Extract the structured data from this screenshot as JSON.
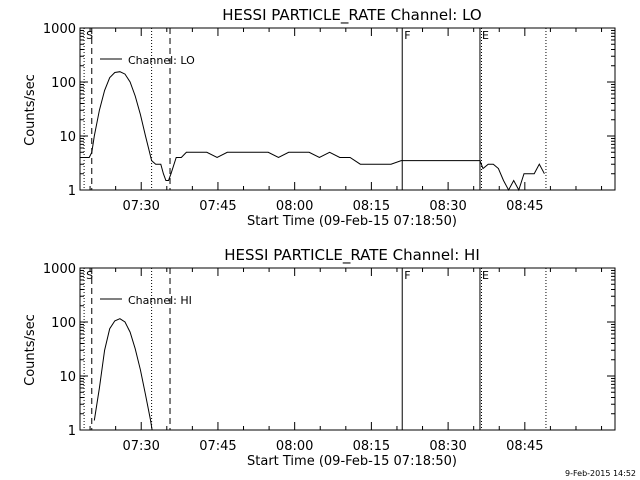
{
  "footer": {
    "timestamp": "9-Feb-2015 14:52"
  },
  "chart_data": [
    {
      "type": "line",
      "title": "HESSI PARTICLE_RATE Channel: LO",
      "xlabel": "Start Time (09-Feb-15 07:18:50)",
      "ylabel": "Counts/sec",
      "yscale": "log",
      "ylim": [
        1,
        1000
      ],
      "xlim_minutes_after_start": [
        -0.8,
        103.8
      ],
      "y_tick_labels": [
        "1",
        "10",
        "100",
        "1000"
      ],
      "x_tick_labels": [
        "07:30",
        "07:45",
        "08:00",
        "08:15",
        "08:30",
        "08:45"
      ],
      "x_tick_minutes_after_start": [
        11.17,
        26.17,
        41.17,
        56.17,
        71.17,
        86.17
      ],
      "legend": {
        "label": "Channel: LO",
        "position": "top-left"
      },
      "markers": [
        {
          "label": "S",
          "t": 0,
          "style": "dotted"
        },
        {
          "label": "",
          "t": 1.5,
          "style": "dashed"
        },
        {
          "label": "",
          "t": 13.2,
          "style": "dotted"
        },
        {
          "label": "",
          "t": 16.8,
          "style": "dashed"
        },
        {
          "label": "F",
          "t": 62.2,
          "style": "solid"
        },
        {
          "label": "E",
          "t": 77.4,
          "style": "solid"
        },
        {
          "label": "",
          "t": 77.7,
          "style": "dotted"
        },
        {
          "label": "",
          "t": 90.3,
          "style": "dotted"
        }
      ],
      "series": [
        {
          "name": "LO",
          "x": [
            0,
            0.5,
            1,
            1.5,
            2,
            3,
            4,
            5,
            6,
            7,
            8,
            9,
            10,
            11,
            12,
            12.6,
            13.2,
            14,
            15,
            15.5,
            16,
            16.5,
            17,
            18,
            19,
            20,
            22,
            24,
            26,
            28,
            30,
            32,
            34,
            36,
            38,
            40,
            42,
            44,
            46,
            48,
            50,
            52,
            54,
            56,
            58,
            60,
            62,
            64,
            66,
            68,
            70,
            72,
            74,
            76,
            77.4,
            78,
            79,
            80,
            81,
            82,
            83,
            84,
            85,
            86,
            87,
            88,
            89,
            90
          ],
          "values": [
            4,
            4,
            4,
            5,
            10,
            30,
            70,
            120,
            150,
            155,
            140,
            100,
            55,
            25,
            10,
            6,
            3.5,
            3,
            3,
            2,
            1.5,
            1.5,
            2,
            4,
            4,
            5,
            5,
            5,
            4,
            5,
            5,
            5,
            5,
            5,
            4,
            5,
            5,
            5,
            4,
            5,
            4,
            4,
            3,
            3,
            3,
            3,
            3.5,
            3.5,
            3.5,
            3.5,
            3.5,
            3.5,
            3.5,
            3.5,
            3.5,
            2.5,
            3,
            3,
            2.5,
            1.5,
            1,
            1.5,
            1,
            2,
            2,
            2,
            3,
            2
          ]
        }
      ]
    },
    {
      "type": "line",
      "title": "HESSI PARTICLE_RATE Channel: HI",
      "xlabel": "Start Time (09-Feb-15 07:18:50)",
      "ylabel": "Counts/sec",
      "yscale": "log",
      "ylim": [
        1,
        1000
      ],
      "xlim_minutes_after_start": [
        -0.8,
        103.8
      ],
      "y_tick_labels": [
        "1",
        "10",
        "100",
        "1000"
      ],
      "x_tick_labels": [
        "07:30",
        "07:45",
        "08:00",
        "08:15",
        "08:30",
        "08:45"
      ],
      "x_tick_minutes_after_start": [
        11.17,
        26.17,
        41.17,
        56.17,
        71.17,
        86.17
      ],
      "legend": {
        "label": "Channel: HI",
        "position": "top-left"
      },
      "markers": [
        {
          "label": "S",
          "t": 0,
          "style": "dotted"
        },
        {
          "label": "",
          "t": 1.5,
          "style": "dashed"
        },
        {
          "label": "",
          "t": 13.2,
          "style": "dotted"
        },
        {
          "label": "",
          "t": 16.8,
          "style": "dashed"
        },
        {
          "label": "F",
          "t": 62.2,
          "style": "solid"
        },
        {
          "label": "E",
          "t": 77.4,
          "style": "solid"
        },
        {
          "label": "",
          "t": 77.7,
          "style": "dotted"
        },
        {
          "label": "",
          "t": 90.3,
          "style": "dotted"
        }
      ],
      "series": [
        {
          "name": "HI",
          "x": [
            2,
            3,
            4,
            5,
            6,
            7,
            8,
            9,
            10,
            11,
            12,
            13,
            13.3
          ],
          "values": [
            1.5,
            6,
            30,
            75,
            105,
            115,
            100,
            65,
            32,
            13,
            4.5,
            1.5,
            1
          ]
        }
      ]
    }
  ]
}
